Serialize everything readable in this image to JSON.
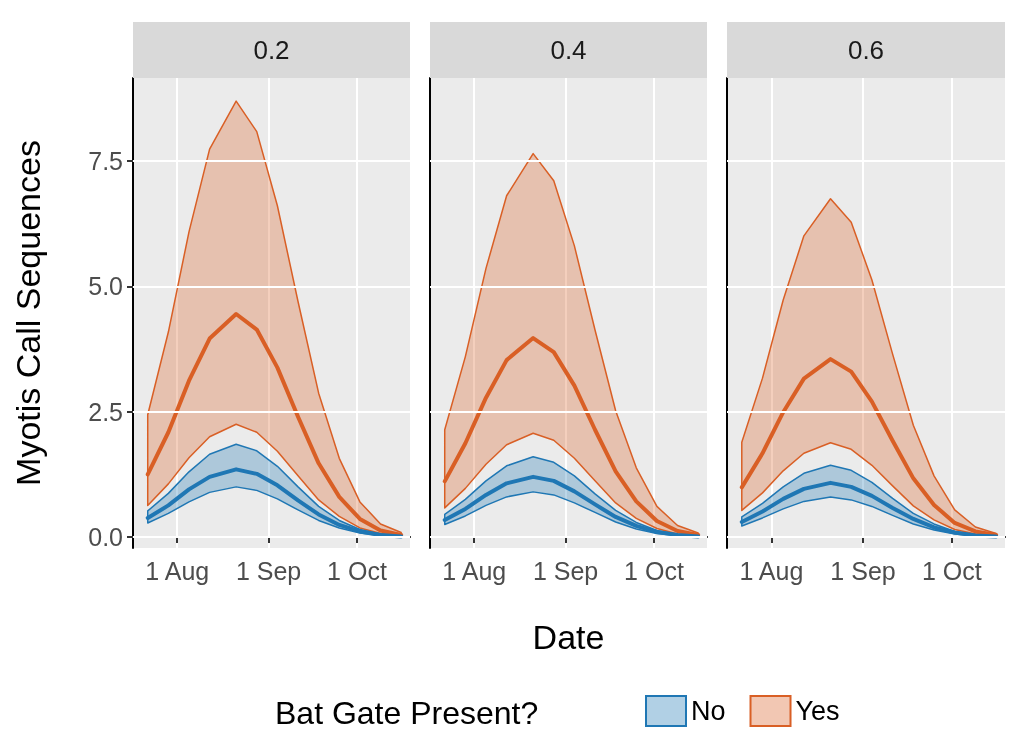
{
  "chart_data": [
    {
      "type": "line",
      "title": "0.2",
      "ylabel": "Myotis Call Sequences",
      "tick_labels": "xy",
      "grid": true,
      "x": [
        "--07-22",
        "--07-29",
        "--08-05",
        "--08-12",
        "--08-21",
        "--08-28",
        "--09-04",
        "--09-11",
        "--09-18",
        "--09-25",
        "--10-02",
        "--10-09",
        "--10-16"
      ],
      "xlim": [
        "--07-17",
        "--10-19"
      ],
      "xticks": [
        {
          "value": "--08-01",
          "label": "1 Aug"
        },
        {
          "value": "--09-01",
          "label": "1 Sep"
        },
        {
          "value": "--10-01",
          "label": "1 Oct"
        }
      ],
      "ylim": [
        -0.22,
        9.16
      ],
      "yticks": [
        {
          "value": 0,
          "label": "0.0"
        },
        2.5,
        {
          "value": 5,
          "label": "5.0"
        },
        7.5
      ],
      "series": [
        {
          "color": "#1f77b4",
          "values": [
            0.38,
            0.63,
            0.95,
            1.2,
            1.35,
            1.26,
            1.03,
            0.73,
            0.45,
            0.24,
            0.11,
            0.04,
            0.01
          ],
          "lower": [
            0.28,
            0.47,
            0.7,
            0.89,
            1.0,
            0.93,
            0.76,
            0.54,
            0.33,
            0.18,
            0.08,
            0.03,
            0.01
          ],
          "upper": [
            0.52,
            0.87,
            1.3,
            1.65,
            1.85,
            1.72,
            1.41,
            1.0,
            0.61,
            0.33,
            0.15,
            0.06,
            0.02
          ]
        },
        {
          "color": "#d95f25",
          "values": [
            1.25,
            2.09,
            3.12,
            3.96,
            4.45,
            4.14,
            3.38,
            2.4,
            1.47,
            0.8,
            0.36,
            0.13,
            0.04
          ],
          "lower": [
            0.63,
            1.06,
            1.58,
            2.0,
            2.25,
            2.09,
            1.71,
            1.22,
            0.74,
            0.41,
            0.18,
            0.07,
            0.02
          ],
          "upper": [
            2.44,
            4.09,
            6.09,
            7.74,
            8.7,
            8.09,
            6.61,
            4.7,
            2.87,
            1.57,
            0.7,
            0.26,
            0.09
          ]
        }
      ]
    },
    {
      "type": "line",
      "title": "0.4",
      "xlabel": "Date",
      "tick_labels": "x",
      "grid": true,
      "legend": "bottom",
      "legend_title": "Bat Gate Present?",
      "x": [
        "--07-22",
        "--07-29",
        "--08-05",
        "--08-12",
        "--08-21",
        "--08-28",
        "--09-04",
        "--09-11",
        "--09-18",
        "--09-25",
        "--10-02",
        "--10-09",
        "--10-16"
      ],
      "xlim": [
        "--07-17",
        "--10-19"
      ],
      "xticks": [
        {
          "value": "--08-01",
          "label": "1 Aug"
        },
        {
          "value": "--09-01",
          "label": "1 Sep"
        },
        {
          "value": "--10-01",
          "label": "1 Oct"
        }
      ],
      "ylim": [
        -0.22,
        9.16
      ],
      "yticks": [
        0,
        2.5,
        5,
        7.5
      ],
      "series": [
        {
          "name": "No",
          "color": "#1f77b4",
          "values": [
            0.34,
            0.56,
            0.84,
            1.07,
            1.2,
            1.12,
            0.91,
            0.65,
            0.4,
            0.22,
            0.1,
            0.04,
            0.01
          ],
          "lower": [
            0.25,
            0.42,
            0.63,
            0.8,
            0.9,
            0.84,
            0.68,
            0.49,
            0.3,
            0.16,
            0.07,
            0.03,
            0.01
          ],
          "upper": [
            0.45,
            0.75,
            1.12,
            1.42,
            1.6,
            1.49,
            1.22,
            0.86,
            0.53,
            0.29,
            0.13,
            0.05,
            0.02
          ]
        },
        {
          "name": "Yes",
          "color": "#d95f25",
          "values": [
            1.11,
            1.87,
            2.78,
            3.53,
            3.97,
            3.69,
            3.02,
            2.14,
            1.31,
            0.71,
            0.32,
            0.12,
            0.04
          ],
          "lower": [
            0.58,
            0.97,
            1.45,
            1.84,
            2.07,
            1.93,
            1.57,
            1.12,
            0.68,
            0.37,
            0.17,
            0.06,
            0.02
          ],
          "upper": [
            2.14,
            3.6,
            5.36,
            6.81,
            7.65,
            7.11,
            5.81,
            4.13,
            2.52,
            1.38,
            0.61,
            0.23,
            0.08
          ]
        }
      ]
    },
    {
      "type": "line",
      "title": "0.6",
      "tick_labels": "x",
      "grid": true,
      "x": [
        "--07-22",
        "--07-29",
        "--08-05",
        "--08-12",
        "--08-21",
        "--08-28",
        "--09-04",
        "--09-11",
        "--09-18",
        "--09-25",
        "--10-02",
        "--10-09",
        "--10-16"
      ],
      "xlim": [
        "--07-17",
        "--10-19"
      ],
      "xticks": [
        {
          "value": "--08-01",
          "label": "1 Aug"
        },
        {
          "value": "--09-01",
          "label": "1 Sep"
        },
        {
          "value": "--10-01",
          "label": "1 Oct"
        }
      ],
      "ylim": [
        -0.22,
        9.16
      ],
      "yticks": [
        0,
        2.5,
        5,
        7.5
      ],
      "series": [
        {
          "color": "#1f77b4",
          "values": [
            0.3,
            0.51,
            0.76,
            0.96,
            1.08,
            1.0,
            0.82,
            0.58,
            0.36,
            0.19,
            0.09,
            0.03,
            0.01
          ],
          "lower": [
            0.22,
            0.38,
            0.56,
            0.71,
            0.8,
            0.74,
            0.61,
            0.43,
            0.26,
            0.14,
            0.06,
            0.02,
            0.01
          ],
          "upper": [
            0.4,
            0.67,
            1.0,
            1.27,
            1.43,
            1.33,
            1.09,
            0.77,
            0.47,
            0.26,
            0.11,
            0.04,
            0.01
          ]
        },
        {
          "color": "#d95f25",
          "values": [
            0.99,
            1.67,
            2.49,
            3.16,
            3.55,
            3.3,
            2.7,
            1.92,
            1.17,
            0.64,
            0.28,
            0.11,
            0.04
          ],
          "lower": [
            0.53,
            0.88,
            1.32,
            1.67,
            1.88,
            1.75,
            1.43,
            1.02,
            0.62,
            0.34,
            0.15,
            0.06,
            0.02
          ],
          "upper": [
            1.89,
            3.17,
            4.73,
            6.01,
            6.75,
            6.28,
            5.13,
            3.65,
            2.23,
            1.22,
            0.54,
            0.2,
            0.07
          ]
        }
      ]
    }
  ]
}
